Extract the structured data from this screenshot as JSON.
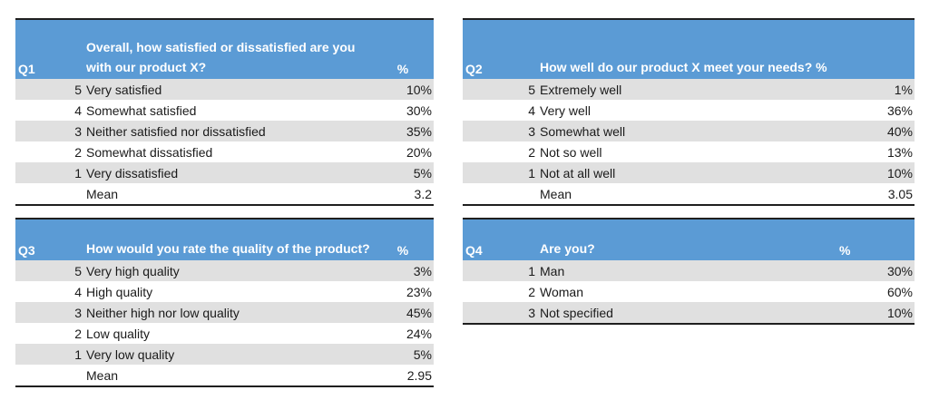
{
  "q1": {
    "id": "Q1",
    "question": "Overall, how satisfied or dissatisfied are you with our product X?",
    "pct_header": "%",
    "rows": [
      {
        "code": "5",
        "label": "Very satisfied",
        "pct": "10%"
      },
      {
        "code": "4",
        "label": "Somewhat satisfied",
        "pct": "30%"
      },
      {
        "code": "3",
        "label": "Neither satisfied nor dissatisfied",
        "pct": "35%"
      },
      {
        "code": "2",
        "label": "Somewhat dissatisfied",
        "pct": "20%"
      },
      {
        "code": "1",
        "label": "Very dissatisfied",
        "pct": "5%"
      }
    ],
    "mean_label": "Mean",
    "mean_value": "3.2"
  },
  "q2": {
    "id": "Q2",
    "question": "How well do our product X meet your needs? %",
    "pct_header": "",
    "rows": [
      {
        "code": "5",
        "label": "Extremely well",
        "pct": "1%"
      },
      {
        "code": "4",
        "label": "Very well",
        "pct": "36%"
      },
      {
        "code": "3",
        "label": "Somewhat well",
        "pct": "40%"
      },
      {
        "code": "2",
        "label": "Not so well",
        "pct": "13%"
      },
      {
        "code": "1",
        "label": "Not at all well",
        "pct": "10%"
      }
    ],
    "mean_label": "Mean",
    "mean_value": "3.05"
  },
  "q3": {
    "id": "Q3",
    "question": "How would you rate the quality of the product?",
    "pct_header": "%",
    "rows": [
      {
        "code": "5",
        "label": "Very high quality",
        "pct": "3%"
      },
      {
        "code": "4",
        "label": "High quality",
        "pct": "23%"
      },
      {
        "code": "3",
        "label": "Neither high nor low quality",
        "pct": "45%"
      },
      {
        "code": "2",
        "label": "Low quality",
        "pct": "24%"
      },
      {
        "code": "1",
        "label": "Very low quality",
        "pct": "5%"
      }
    ],
    "mean_label": "Mean",
    "mean_value": "2.95"
  },
  "q4": {
    "id": "Q4",
    "question": "Are you?",
    "pct_header": "%",
    "rows": [
      {
        "code": "1",
        "label": "Man",
        "pct": "30%"
      },
      {
        "code": "2",
        "label": "Woman",
        "pct": "60%"
      },
      {
        "code": "3",
        "label": "Not specified",
        "pct": "10%"
      }
    ]
  }
}
